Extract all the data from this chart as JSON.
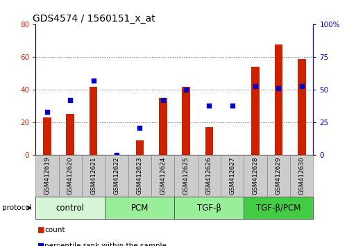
{
  "title": "GDS4574 / 1560151_x_at",
  "samples": [
    "GSM412619",
    "GSM412620",
    "GSM412621",
    "GSM412622",
    "GSM412623",
    "GSM412624",
    "GSM412625",
    "GSM412626",
    "GSM412627",
    "GSM412628",
    "GSM412629",
    "GSM412630"
  ],
  "count": [
    23,
    25,
    42,
    0,
    9,
    35,
    42,
    17,
    0,
    54,
    68,
    59
  ],
  "percentile": [
    33,
    42,
    57,
    0,
    21,
    42,
    50,
    38,
    38,
    53,
    51,
    53
  ],
  "groups": [
    {
      "label": "control",
      "start": 0,
      "end": 3,
      "color": "#d6f5d6"
    },
    {
      "label": "PCM",
      "start": 3,
      "end": 6,
      "color": "#99ee99"
    },
    {
      "label": "TGF-β",
      "start": 6,
      "end": 9,
      "color": "#99ee99"
    },
    {
      "label": "TGF-β/PCM",
      "start": 9,
      "end": 12,
      "color": "#44cc44"
    }
  ],
  "left_ylim": [
    0,
    80
  ],
  "right_ylim": [
    0,
    100
  ],
  "left_yticks": [
    0,
    20,
    40,
    60,
    80
  ],
  "right_yticks": [
    0,
    25,
    50,
    75,
    100
  ],
  "right_yticklabels": [
    "0",
    "25",
    "50",
    "75",
    "100%"
  ],
  "bar_color": "#cc2200",
  "marker_color": "#0000cc",
  "bar_width": 0.35,
  "title_fontsize": 10,
  "tick_fontsize": 7.5,
  "sample_fontsize": 6.5,
  "group_label_fontsize": 8.5,
  "sample_box_color": "#cccccc",
  "sample_box_edge": "#888888",
  "group_box_edge": "#555555"
}
